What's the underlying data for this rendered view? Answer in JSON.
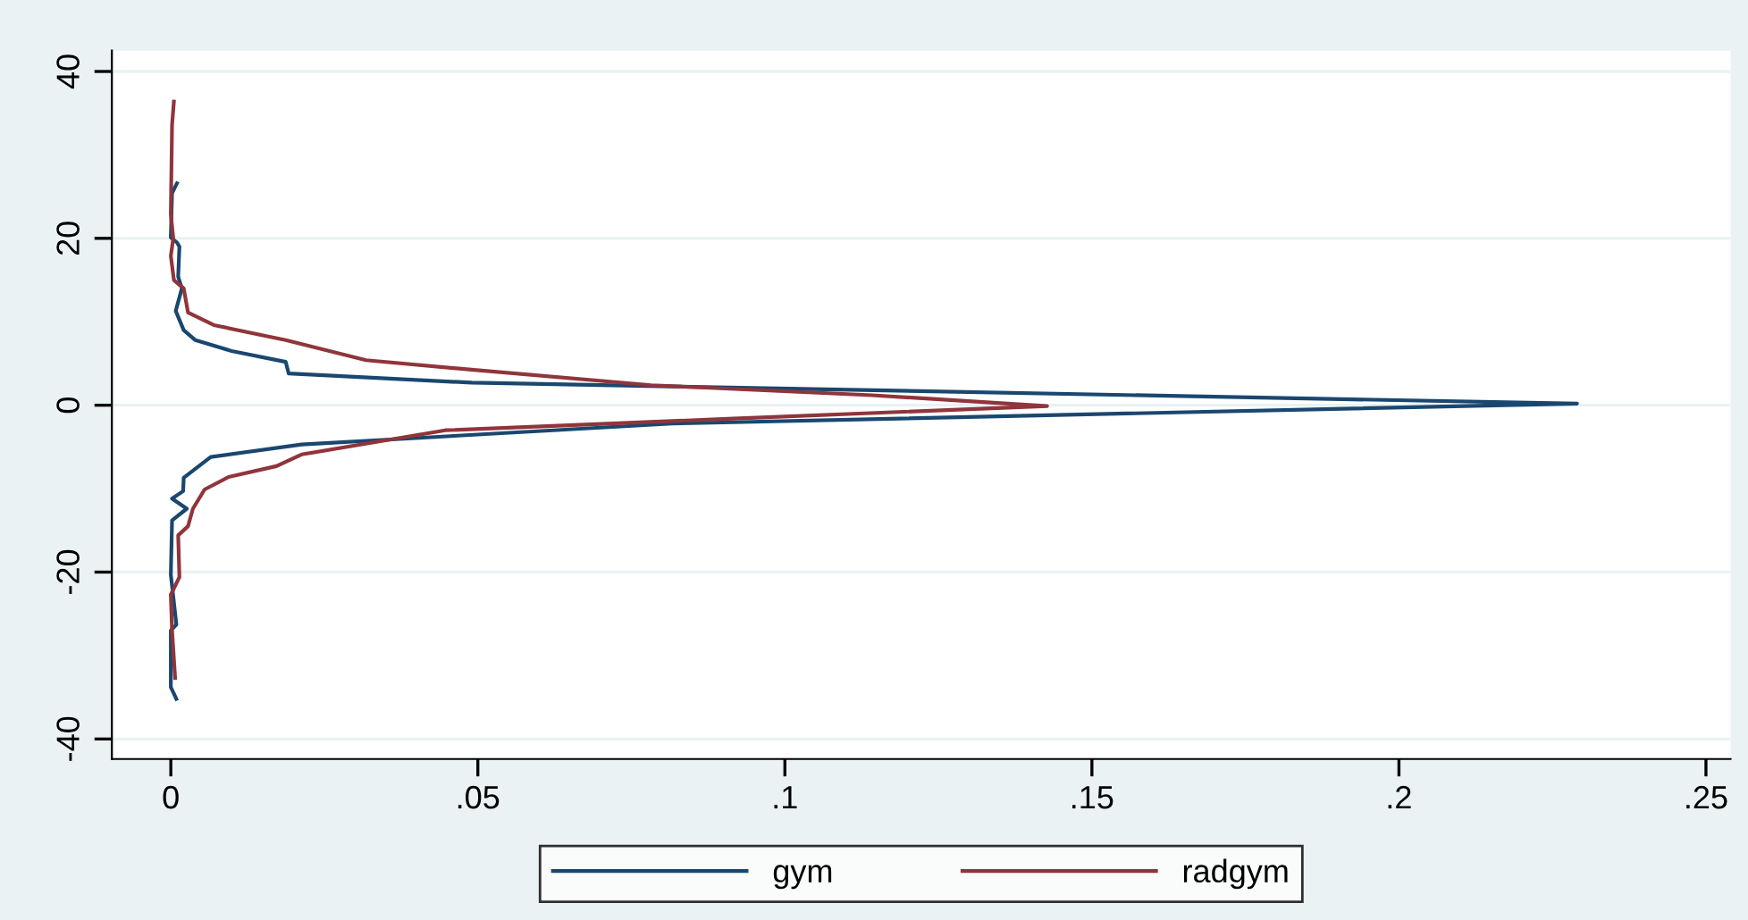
{
  "chart_data": {
    "type": "line",
    "xlim": [
      -0.0096,
      0.254
    ],
    "ylim": [
      -42.4,
      42.5
    ],
    "xticks": [
      0,
      {
        "value": 0.05,
        "label": ".05"
      },
      {
        "value": 0.1,
        "label": ".1"
      },
      {
        "value": 0.15,
        "label": ".15"
      },
      {
        "value": 0.2,
        "label": ".2"
      },
      {
        "value": 0.25,
        "label": ".25"
      }
    ],
    "yticks": [
      -40,
      -20,
      0,
      20,
      40
    ],
    "grid": "y",
    "legend": "bottom",
    "series": [
      {
        "name": "gym",
        "color": "#1a476f",
        "x": [
          0.001,
          0.0002,
          0,
          0.001,
          0.0014,
          0.0012,
          0.0018,
          0.0008,
          0.0021,
          0.004,
          0.0099,
          0.0187,
          0.0192,
          0.049,
          0.229,
          0.0816,
          0.0456,
          0.0213,
          0.0065,
          0.0021,
          0.002,
          0.0002,
          0.0026,
          0.0002,
          0,
          0.0009,
          0,
          0,
          0.0009
        ],
        "values": [
          26.6,
          25.4,
          20.1,
          19.5,
          19.0,
          15.4,
          14.0,
          11.3,
          9.0,
          7.8,
          6.5,
          5.2,
          3.8,
          2.7,
          0.2,
          -2.2,
          -3.7,
          -4.7,
          -6.2,
          -8.7,
          -10.3,
          -11.2,
          -12.4,
          -13.8,
          -20.3,
          -26.3,
          -27,
          -33.8,
          -35.2
        ]
      },
      {
        "name": "radgym",
        "color": "#90353b",
        "x": [
          0.0005,
          0.0002,
          0,
          0.0004,
          0,
          0.0005,
          0.0021,
          0.0028,
          0.007,
          0.0187,
          0.0318,
          0.0498,
          0.0782,
          0.1142,
          0.1427,
          0.0916,
          0.0447,
          0.0213,
          0.0172,
          0.0094,
          0.0055,
          0.0036,
          0.0028,
          0.0012,
          0.0014,
          0,
          0.0002,
          0.0007
        ],
        "values": [
          36.4,
          33.6,
          22.9,
          20.0,
          17.9,
          15.0,
          14.0,
          11.1,
          9.6,
          7.8,
          5.4,
          4.2,
          2.4,
          1.2,
          -0.1,
          -1.6,
          -3.0,
          -5.9,
          -7.3,
          -8.6,
          -10.1,
          -12.4,
          -14.5,
          -15.6,
          -20.6,
          -22.7,
          -27,
          -32.7
        ]
      }
    ]
  }
}
